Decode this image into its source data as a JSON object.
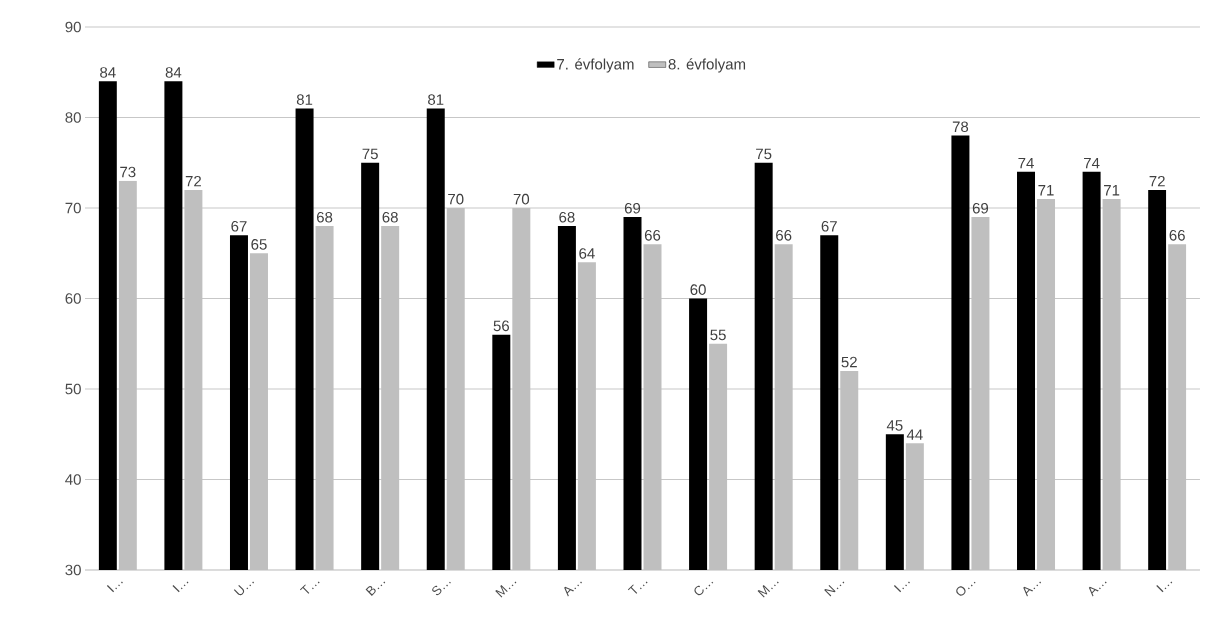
{
  "chart_data": {
    "type": "bar",
    "categories": [
      "I…",
      "I…",
      "U…",
      "T…",
      "B…",
      "S…",
      "M…",
      "A…",
      "T…",
      "C…",
      "M…",
      "N…",
      "I…",
      "O…",
      "A…",
      "A…",
      "I…"
    ],
    "series": [
      {
        "name": "7. évfolyam",
        "color": "#000000",
        "values": [
          84,
          84,
          67,
          81,
          75,
          81,
          56,
          68,
          69,
          60,
          75,
          67,
          45,
          78,
          74,
          74,
          72
        ]
      },
      {
        "name": "8. évfolyam",
        "color": "#bfbfbf",
        "values": [
          73,
          72,
          65,
          68,
          68,
          70,
          70,
          64,
          66,
          55,
          66,
          52,
          44,
          69,
          71,
          71,
          66
        ]
      }
    ],
    "ylim": [
      30,
      90
    ],
    "yticks": [
      30,
      40,
      50,
      60,
      70,
      80,
      90
    ],
    "grid": "y",
    "legend": "top",
    "data_labels": true
  }
}
